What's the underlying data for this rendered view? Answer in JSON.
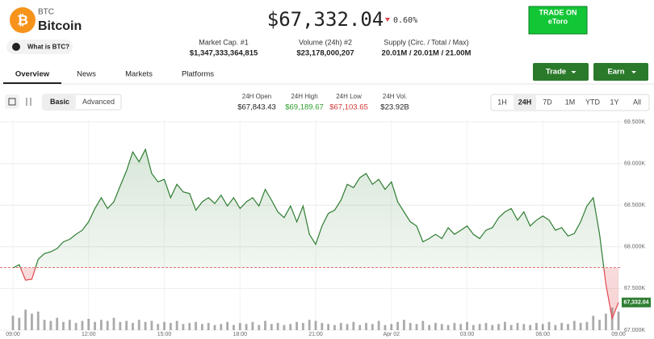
{
  "header": {
    "symbol": "BTC",
    "name": "Bitcoin",
    "what_is": "What is BTC?",
    "price": "$67,332.04",
    "change": "0.60%",
    "ad": {
      "line1": "TRADE ON",
      "line2": "eToro"
    }
  },
  "stats": [
    {
      "label": "Market Cap. #1",
      "value": "$1,347,333,364,815"
    },
    {
      "label": "Volume (24h) #2",
      "value": "$23,178,000,207"
    },
    {
      "label": "Supply (Circ. / Total / Max)",
      "value": "20.01M / 20.01M / 21.00M"
    }
  ],
  "tabs": [
    "Overview",
    "News",
    "Markets",
    "Platforms"
  ],
  "buttons": [
    "Trade",
    "Earn"
  ],
  "chart_modes": [
    "Basic",
    "Advanced"
  ],
  "day_stats": [
    {
      "label": "24H Open",
      "value": "$67,843.43"
    },
    {
      "label": "24H High",
      "value": "$69,189.67"
    },
    {
      "label": "24H Low",
      "value": "$67,103.65"
    },
    {
      "label": "24H Vol.",
      "value": "$23.92B"
    }
  ],
  "ranges": [
    "1H",
    "24H",
    "7D",
    "1M",
    "YTD",
    "1Y",
    "All"
  ],
  "chart_data": {
    "type": "line",
    "categories": [
      "09:00",
      null,
      null,
      null,
      null,
      null,
      null,
      null,
      null,
      null,
      null,
      null,
      "12:00",
      null,
      null,
      null,
      null,
      null,
      null,
      null,
      null,
      null,
      null,
      null,
      "15:00",
      null,
      null,
      null,
      null,
      null,
      null,
      null,
      null,
      null,
      null,
      null,
      "18:00",
      null,
      null,
      null,
      null,
      null,
      null,
      null,
      null,
      null,
      null,
      null,
      "21:00",
      null,
      null,
      null,
      null,
      null,
      null,
      null,
      null,
      null,
      null,
      null,
      "Apr 02",
      null,
      null,
      null,
      null,
      null,
      null,
      null,
      null,
      null,
      null,
      null,
      "03:00",
      null,
      null,
      null,
      null,
      null,
      null,
      null,
      null,
      null,
      null,
      null,
      "06:00",
      null,
      null,
      null,
      null,
      null,
      null,
      null,
      null,
      null,
      null,
      null,
      "09:00"
    ],
    "values": [
      67746,
      67785,
      67600,
      67610,
      67850,
      67920,
      67940,
      67980,
      68060,
      68090,
      68150,
      68200,
      68300,
      68460,
      68590,
      68460,
      68540,
      68730,
      68910,
      69140,
      69020,
      69170,
      68880,
      68780,
      68810,
      68590,
      68750,
      68660,
      68640,
      68440,
      68540,
      68590,
      68520,
      68620,
      68490,
      68590,
      68460,
      68540,
      68590,
      68490,
      68690,
      68560,
      68420,
      68350,
      68490,
      68300,
      68490,
      68150,
      68030,
      68250,
      68400,
      68440,
      68560,
      68750,
      68710,
      68830,
      68880,
      68750,
      68810,
      68690,
      68780,
      68540,
      68420,
      68300,
      68250,
      68060,
      68100,
      68150,
      68100,
      68230,
      68150,
      68200,
      68250,
      68150,
      68100,
      68200,
      68230,
      68350,
      68420,
      68460,
      68320,
      68420,
      68250,
      68320,
      68370,
      68320,
      68200,
      68230,
      68130,
      68160,
      68300,
      68490,
      68590,
      68150,
      67550,
      67140,
      67332
    ],
    "volume": [
      14,
      12,
      20,
      16,
      18,
      10,
      9,
      12,
      8,
      10,
      7,
      9,
      11,
      8,
      10,
      9,
      12,
      8,
      9,
      7,
      10,
      8,
      9,
      6,
      8,
      7,
      9,
      6,
      7,
      8,
      6,
      7,
      5,
      6,
      8,
      5,
      7,
      6,
      8,
      5,
      9,
      6,
      7,
      5,
      6,
      8,
      7,
      10,
      9,
      7,
      6,
      5,
      7,
      6,
      8,
      5,
      7,
      6,
      9,
      5,
      6,
      8,
      10,
      7,
      6,
      9,
      5,
      7,
      6,
      5,
      7,
      6,
      8,
      5,
      6,
      7,
      5,
      6,
      8,
      5,
      7,
      6,
      5,
      7,
      6,
      8,
      5,
      7,
      6,
      9,
      7,
      8,
      14,
      10,
      16,
      22,
      18
    ],
    "color": "#2e7d32",
    "below_color": "#e0474c",
    "reference_line": 67750,
    "last_price_label": "67,332.04",
    "ylim": [
      67000,
      69500
    ],
    "yticks": [
      {
        "value": 67000,
        "label": "67.000K"
      },
      {
        "value": 67500,
        "label": "67.500K"
      },
      {
        "value": 68000,
        "label": "68.000K"
      },
      {
        "value": 68500,
        "label": "68.500K"
      },
      {
        "value": 69000,
        "label": "69.000K"
      },
      {
        "value": 69500,
        "label": "69.500K"
      }
    ],
    "grid": true
  }
}
